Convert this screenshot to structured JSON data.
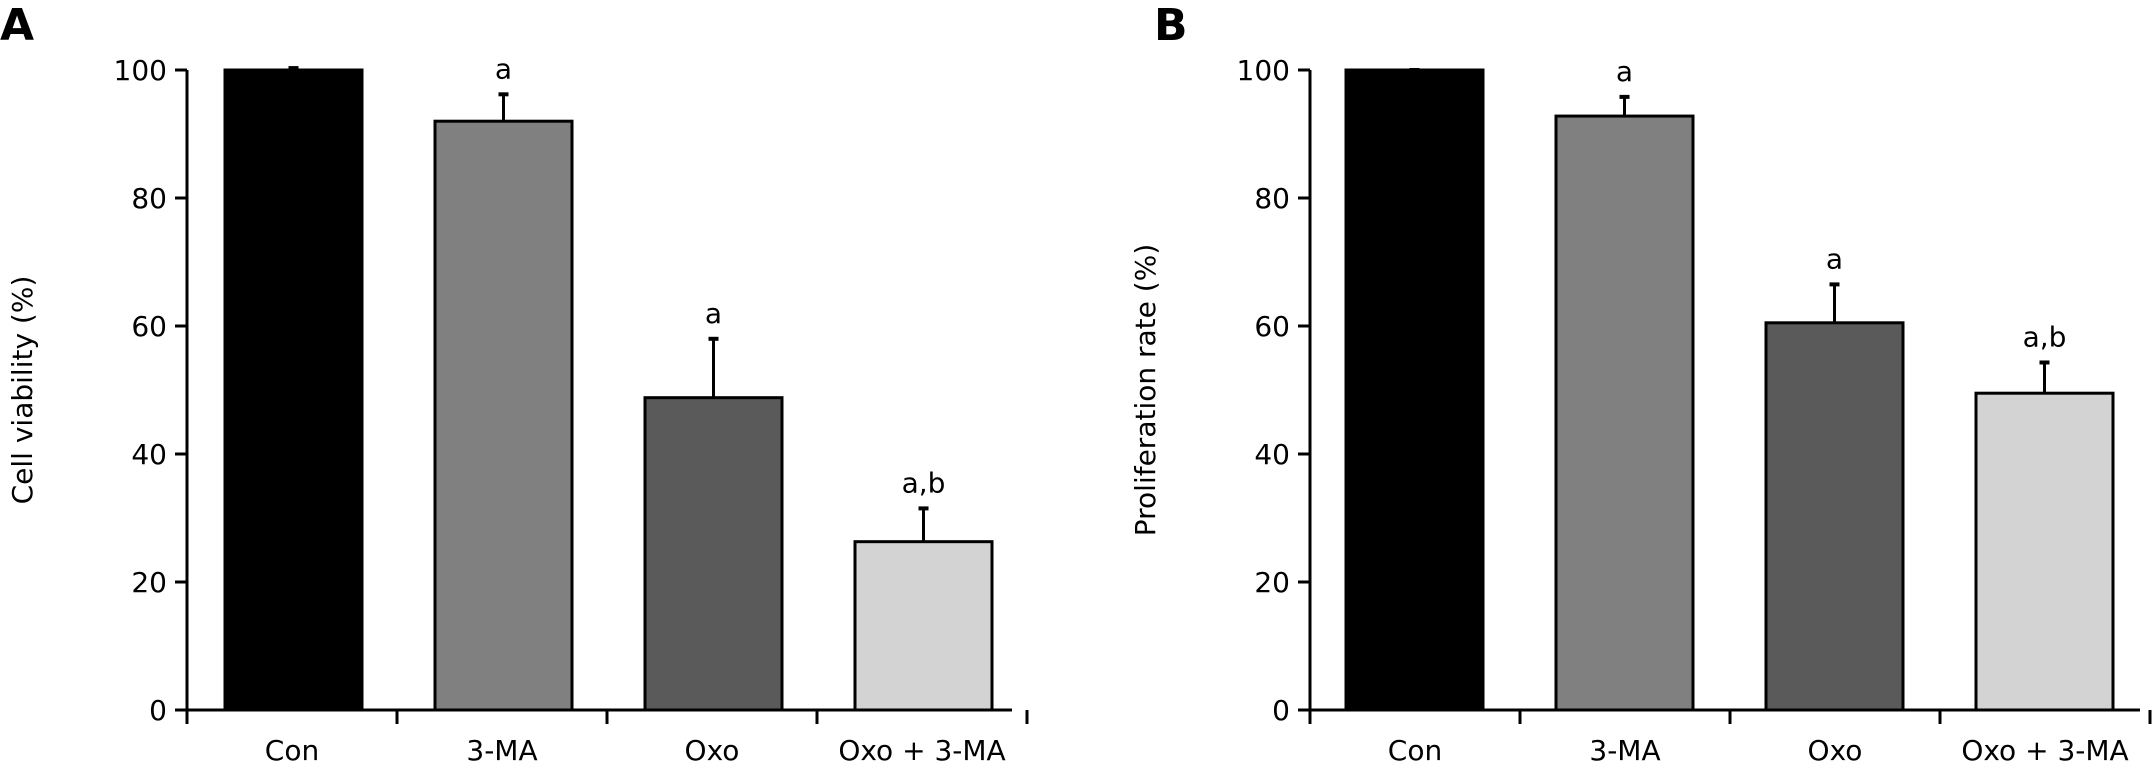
{
  "chart_data": [
    {
      "type": "bar",
      "panel_label": "A",
      "title": "",
      "xlabel": "",
      "ylabel": "Cell viability (%)",
      "ylim": [
        0,
        100
      ],
      "yticks": [
        0,
        20,
        40,
        60,
        80,
        100
      ],
      "categories": [
        "Con",
        "3-MA",
        "Oxo",
        "Oxo + 3-MA"
      ],
      "values": [
        100,
        92,
        48.8,
        26.3
      ],
      "errors": [
        0.3,
        4.2,
        9.2,
        5.2
      ],
      "annotations": [
        "",
        "a",
        "a",
        "a,b"
      ],
      "colors": [
        "#000000",
        "#808080",
        "#5a5a5a",
        "#d3d3d3"
      ]
    },
    {
      "type": "bar",
      "panel_label": "B",
      "title": "",
      "xlabel": "",
      "ylabel": "Proliferation rate (%)",
      "ylim": [
        0,
        100
      ],
      "yticks": [
        0,
        20,
        40,
        60,
        80,
        100
      ],
      "categories": [
        "Con",
        "3-MA",
        "Oxo",
        "Oxo + 3-MA"
      ],
      "values": [
        100,
        92.8,
        60.5,
        49.5
      ],
      "errors": [
        0,
        3,
        6,
        4.8
      ],
      "annotations": [
        "",
        "a",
        "a",
        "a,b"
      ],
      "colors": [
        "#000000",
        "#808080",
        "#5a5a5a",
        "#d3d3d3"
      ]
    }
  ]
}
